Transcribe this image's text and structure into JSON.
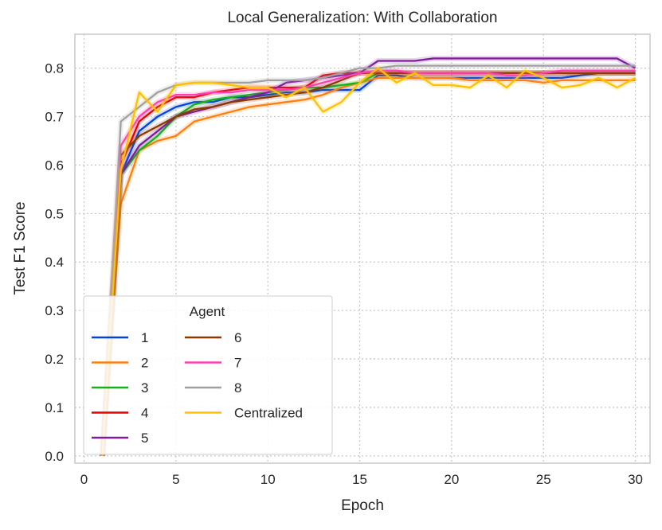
{
  "chart_data": {
    "type": "line",
    "title": "Local Generalization: With Collaboration",
    "xlabel": "Epoch",
    "ylabel": "Test F1 Score",
    "xlim": [
      -0.5,
      30.8
    ],
    "ylim": [
      -0.015,
      0.87
    ],
    "xticks": [
      0,
      5,
      10,
      15,
      20,
      25,
      30
    ],
    "yticks": [
      0.0,
      0.1,
      0.2,
      0.3,
      0.4,
      0.5,
      0.6,
      0.7,
      0.8
    ],
    "grid": true,
    "legend": {
      "title": "Agent",
      "placement": "lower-left",
      "columns": 2
    },
    "x": [
      1,
      2,
      3,
      4,
      5,
      6,
      7,
      8,
      9,
      10,
      11,
      12,
      13,
      14,
      15,
      16,
      17,
      18,
      19,
      20,
      21,
      22,
      23,
      24,
      25,
      26,
      27,
      28,
      29,
      30
    ],
    "series": [
      {
        "name": "1",
        "color": "#0343df",
        "values": [
          0.0,
          0.58,
          0.67,
          0.7,
          0.72,
          0.73,
          0.73,
          0.74,
          0.74,
          0.745,
          0.75,
          0.75,
          0.755,
          0.755,
          0.755,
          0.785,
          0.785,
          0.78,
          0.78,
          0.78,
          0.78,
          0.78,
          0.78,
          0.78,
          0.78,
          0.78,
          0.785,
          0.79,
          0.79,
          0.79
        ]
      },
      {
        "name": "2",
        "color": "#ff7f0e",
        "values": [
          0.0,
          0.52,
          0.63,
          0.65,
          0.66,
          0.69,
          0.7,
          0.71,
          0.72,
          0.725,
          0.73,
          0.735,
          0.745,
          0.76,
          0.77,
          0.78,
          0.78,
          0.78,
          0.78,
          0.78,
          0.775,
          0.775,
          0.775,
          0.775,
          0.77,
          0.775,
          0.775,
          0.775,
          0.775,
          0.775
        ]
      },
      {
        "name": "3",
        "color": "#15b01a",
        "values": [
          0.0,
          0.58,
          0.63,
          0.66,
          0.7,
          0.725,
          0.735,
          0.74,
          0.745,
          0.75,
          0.755,
          0.76,
          0.76,
          0.765,
          0.77,
          0.79,
          0.79,
          0.79,
          0.79,
          0.79,
          0.79,
          0.79,
          0.79,
          0.79,
          0.79,
          0.79,
          0.79,
          0.79,
          0.79,
          0.79
        ]
      },
      {
        "name": "4",
        "color": "#e50000",
        "values": [
          0.0,
          0.6,
          0.69,
          0.72,
          0.74,
          0.74,
          0.75,
          0.755,
          0.76,
          0.76,
          0.76,
          0.76,
          0.785,
          0.79,
          0.79,
          0.79,
          0.79,
          0.79,
          0.79,
          0.79,
          0.79,
          0.79,
          0.79,
          0.79,
          0.79,
          0.79,
          0.79,
          0.79,
          0.79,
          0.79
        ]
      },
      {
        "name": "5",
        "color": "#7e1e9c",
        "values": [
          0.0,
          0.58,
          0.64,
          0.67,
          0.7,
          0.71,
          0.72,
          0.73,
          0.74,
          0.75,
          0.77,
          0.775,
          0.78,
          0.785,
          0.79,
          0.815,
          0.815,
          0.815,
          0.82,
          0.82,
          0.82,
          0.82,
          0.82,
          0.82,
          0.82,
          0.82,
          0.82,
          0.82,
          0.82,
          0.8
        ]
      },
      {
        "name": "6",
        "color": "#8c3900",
        "values": [
          0.0,
          0.62,
          0.66,
          0.68,
          0.7,
          0.715,
          0.72,
          0.73,
          0.735,
          0.74,
          0.745,
          0.75,
          0.76,
          0.775,
          0.79,
          0.79,
          0.79,
          0.79,
          0.79,
          0.79,
          0.79,
          0.79,
          0.79,
          0.79,
          0.79,
          0.79,
          0.79,
          0.79,
          0.79,
          0.79
        ]
      },
      {
        "name": "7",
        "color": "#ff40b0",
        "values": [
          0.0,
          0.64,
          0.7,
          0.73,
          0.745,
          0.745,
          0.75,
          0.75,
          0.755,
          0.755,
          0.755,
          0.76,
          0.77,
          0.78,
          0.79,
          0.795,
          0.795,
          0.79,
          0.79,
          0.79,
          0.79,
          0.79,
          0.785,
          0.785,
          0.79,
          0.795,
          0.795,
          0.795,
          0.795,
          0.795
        ]
      },
      {
        "name": "8",
        "color": "#a0a0a0",
        "values": [
          0.0,
          0.69,
          0.72,
          0.75,
          0.765,
          0.77,
          0.77,
          0.77,
          0.77,
          0.775,
          0.775,
          0.775,
          0.78,
          0.79,
          0.8,
          0.8,
          0.805,
          0.805,
          0.805,
          0.805,
          0.805,
          0.805,
          0.805,
          0.805,
          0.805,
          0.805,
          0.805,
          0.805,
          0.805,
          0.805
        ]
      },
      {
        "name": "Centralized",
        "color": "#ffc000",
        "values": [
          0.0,
          0.59,
          0.75,
          0.71,
          0.765,
          0.77,
          0.77,
          0.765,
          0.76,
          0.76,
          0.74,
          0.76,
          0.71,
          0.73,
          0.77,
          0.8,
          0.77,
          0.79,
          0.765,
          0.765,
          0.76,
          0.785,
          0.76,
          0.795,
          0.78,
          0.76,
          0.765,
          0.78,
          0.76,
          0.78
        ]
      }
    ]
  }
}
